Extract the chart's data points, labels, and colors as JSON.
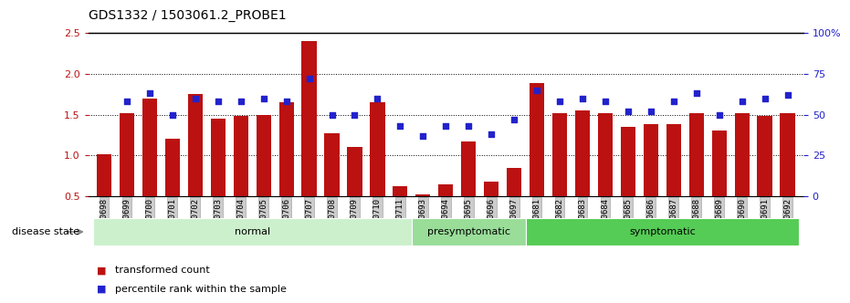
{
  "title": "GDS1332 / 1503061.2_PROBE1",
  "samples": [
    "GSM30698",
    "GSM30699",
    "GSM30700",
    "GSM30701",
    "GSM30702",
    "GSM30703",
    "GSM30704",
    "GSM30705",
    "GSM30706",
    "GSM30707",
    "GSM30708",
    "GSM30709",
    "GSM30710",
    "GSM30711",
    "GSM30693",
    "GSM30694",
    "GSM30695",
    "GSM30696",
    "GSM30697",
    "GSM30681",
    "GSM30682",
    "GSM30683",
    "GSM30684",
    "GSM30685",
    "GSM30686",
    "GSM30687",
    "GSM30688",
    "GSM30689",
    "GSM30690",
    "GSM30691",
    "GSM30692"
  ],
  "bar_values": [
    1.02,
    1.52,
    1.7,
    1.2,
    1.75,
    1.45,
    1.48,
    1.5,
    1.65,
    2.4,
    1.27,
    1.1,
    1.65,
    0.62,
    0.52,
    0.65,
    1.17,
    0.68,
    0.85,
    1.88,
    1.52,
    1.55,
    1.52,
    1.35,
    1.38,
    1.38,
    1.52,
    1.3,
    1.52,
    1.48,
    1.52
  ],
  "dot_values": [
    null,
    58,
    63,
    50,
    60,
    58,
    58,
    60,
    58,
    72,
    50,
    50,
    60,
    43,
    37,
    43,
    43,
    38,
    47,
    65,
    58,
    60,
    58,
    52,
    52,
    58,
    63,
    50,
    58,
    60,
    62
  ],
  "groups": [
    {
      "label": "normal",
      "start": 0,
      "end": 14,
      "color": "#ccf0cc"
    },
    {
      "label": "presymptomatic",
      "start": 14,
      "end": 19,
      "color": "#99dd99"
    },
    {
      "label": "symptomatic",
      "start": 19,
      "end": 31,
      "color": "#55cc55"
    }
  ],
  "bar_color": "#bb1111",
  "dot_color": "#2222cc",
  "ylim_left": [
    0.5,
    2.5
  ],
  "ylim_right": [
    0,
    100
  ],
  "yticks_left": [
    0.5,
    1.0,
    1.5,
    2.0,
    2.5
  ],
  "yticks_right": [
    0,
    25,
    50,
    75,
    100
  ],
  "hlines": [
    1.0,
    1.5,
    2.0
  ],
  "disease_state_label": "disease state",
  "legend1": "transformed count",
  "legend2": "percentile rank within the sample",
  "bg_color": "#ffffff"
}
